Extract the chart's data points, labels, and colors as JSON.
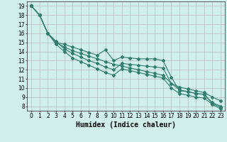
{
  "title": "",
  "xlabel": "Humidex (Indice chaleur)",
  "ylabel": "",
  "background_color": "#d0eeea",
  "grid_color": "#b0b0b0",
  "line_color": "#2e7d6e",
  "xlim": [
    -0.5,
    23.5
  ],
  "ylim": [
    7.5,
    19.5
  ],
  "x_ticks": [
    0,
    1,
    2,
    3,
    4,
    5,
    6,
    7,
    8,
    9,
    10,
    11,
    12,
    13,
    14,
    15,
    16,
    17,
    18,
    19,
    20,
    21,
    22,
    23
  ],
  "y_ticks": [
    8,
    9,
    10,
    11,
    12,
    13,
    14,
    15,
    16,
    17,
    18,
    19
  ],
  "line1_x": [
    0,
    1,
    2,
    3,
    4,
    5,
    6,
    7,
    8,
    9,
    10,
    11,
    12,
    13,
    14,
    15,
    16,
    17,
    18,
    19,
    20,
    21,
    22,
    23
  ],
  "line1_y": [
    19.0,
    18.0,
    16.0,
    15.0,
    14.8,
    14.5,
    14.2,
    13.9,
    13.6,
    14.2,
    13.0,
    13.4,
    13.3,
    13.2,
    13.2,
    13.2,
    13.0,
    11.2,
    9.7,
    9.6,
    9.4,
    9.3,
    8.3,
    7.9
  ],
  "line2_x": [
    0,
    1,
    2,
    3,
    4,
    5,
    6,
    7,
    8,
    9,
    10,
    11,
    12,
    13,
    14,
    15,
    16,
    17,
    18,
    19,
    20,
    21,
    22,
    23
  ],
  "line2_y": [
    19.0,
    18.0,
    16.0,
    15.0,
    14.5,
    14.1,
    13.8,
    13.5,
    13.2,
    12.9,
    12.6,
    12.4,
    12.2,
    12.0,
    11.8,
    11.6,
    11.4,
    10.5,
    10.1,
    9.9,
    9.7,
    9.5,
    9.0,
    8.6
  ],
  "line3_x": [
    0,
    1,
    2,
    3,
    4,
    5,
    6,
    7,
    8,
    9,
    10,
    11,
    12,
    13,
    14,
    15,
    16,
    17,
    18,
    19,
    20,
    21,
    22,
    23
  ],
  "line3_y": [
    19.0,
    18.0,
    16.0,
    15.1,
    14.3,
    13.8,
    13.4,
    13.0,
    12.7,
    12.3,
    12.0,
    12.7,
    12.6,
    12.5,
    12.4,
    12.3,
    12.2,
    10.5,
    9.8,
    9.6,
    9.4,
    9.3,
    8.4,
    8.0
  ],
  "line4_x": [
    0,
    1,
    2,
    3,
    4,
    5,
    6,
    7,
    8,
    9,
    10,
    11,
    12,
    13,
    14,
    15,
    16,
    17,
    18,
    19,
    20,
    21,
    22,
    23
  ],
  "line4_y": [
    19.0,
    18.0,
    16.0,
    14.8,
    14.0,
    13.3,
    12.9,
    12.5,
    12.1,
    11.7,
    11.4,
    12.1,
    11.9,
    11.7,
    11.5,
    11.3,
    11.1,
    10.0,
    9.4,
    9.2,
    9.0,
    8.9,
    8.2,
    7.7
  ],
  "marker": "D",
  "marker_size": 2.0,
  "linewidth": 0.8,
  "xlabel_fontsize": 7,
  "tick_fontsize": 5.5
}
